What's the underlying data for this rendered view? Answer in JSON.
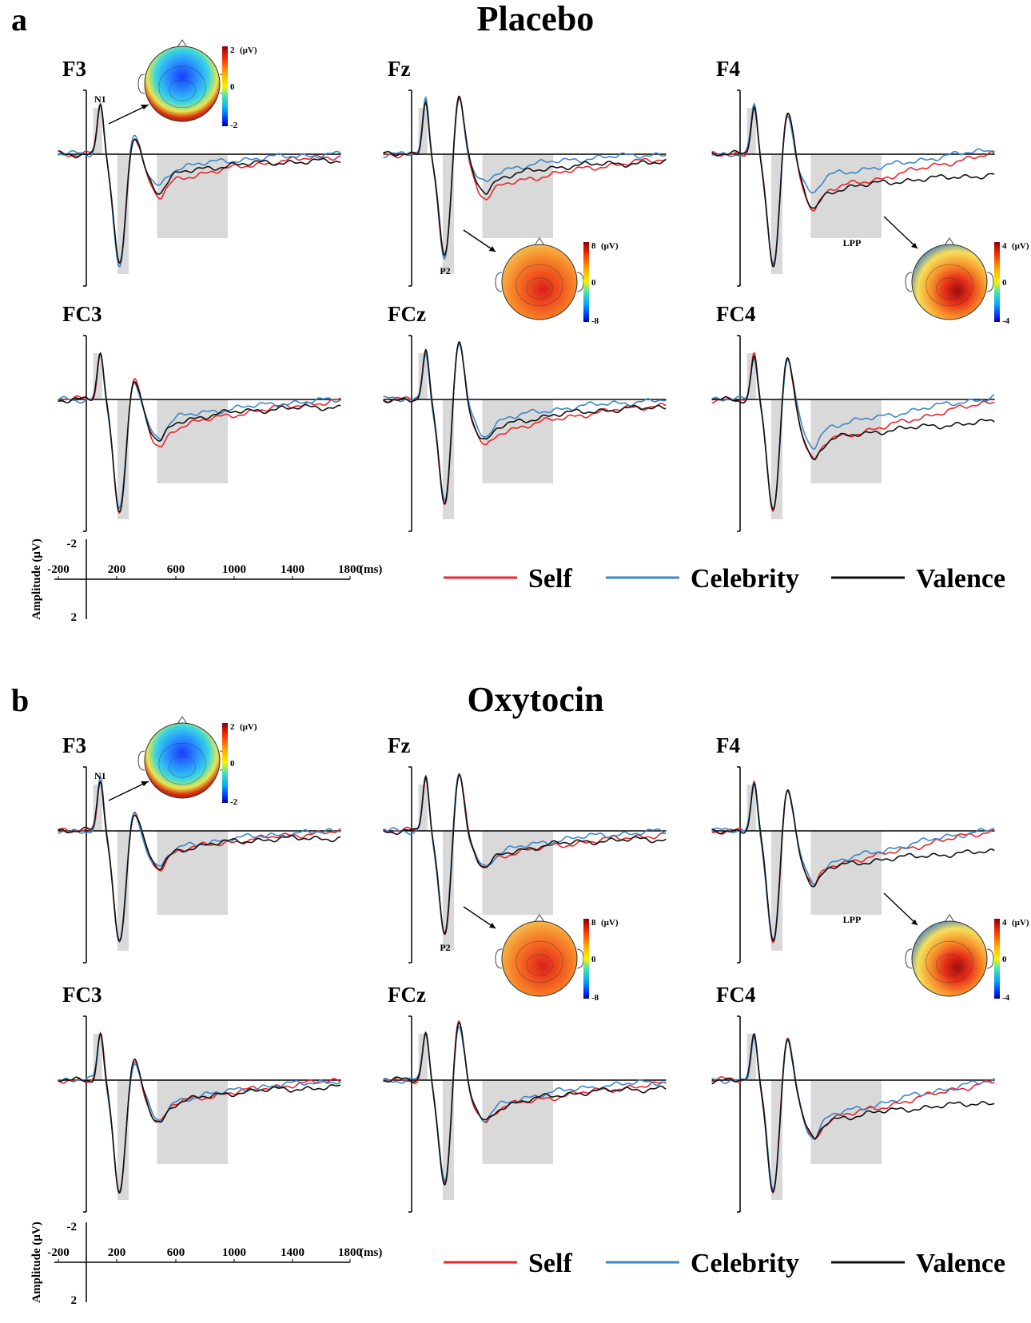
{
  "chart_data": {
    "type": "line",
    "series_names": [
      "Self",
      "Celebrity",
      "Valence"
    ],
    "colors": {
      "Self": "#e8262b",
      "Celebrity": "#3d86c6",
      "Valence": "#111111",
      "window": "#d9d9d9"
    },
    "x_axis": {
      "ticks": [
        "-200",
        "200",
        "600",
        "1000",
        "1400",
        "1800"
      ],
      "unit": "(ms)",
      "range_ms": [
        -200,
        1800
      ]
    },
    "y_axis": {
      "label": "Amplitude (μV)",
      "ticks": [
        "-2",
        "2"
      ]
    },
    "windows": {
      "N1": [
        60,
        150
      ],
      "P2": [
        220,
        300
      ],
      "LPP": [
        500,
        1000
      ]
    },
    "panels": [
      {
        "letter": "a",
        "title": "Placebo",
        "electrodes": [
          {
            "name": "F3",
            "component": "N1",
            "topo": {
              "max": "2",
              "mid": "0",
              "min": "-2",
              "unit": "(μV)"
            }
          },
          {
            "name": "Fz",
            "component": "P2",
            "topo": {
              "max": "8",
              "mid": "0",
              "min": "-8",
              "unit": "(μV)"
            }
          },
          {
            "name": "F4",
            "component": "LPP",
            "topo": {
              "max": "4",
              "mid": "0",
              "min": "-4",
              "unit": "(μV)"
            }
          },
          {
            "name": "FC3"
          },
          {
            "name": "FCz"
          },
          {
            "name": "FC4"
          }
        ]
      },
      {
        "letter": "b",
        "title": "Oxytocin",
        "electrodes": [
          {
            "name": "F3",
            "component": "N1",
            "topo": {
              "max": "2",
              "mid": "0",
              "min": "-2",
              "unit": "(μV)"
            }
          },
          {
            "name": "Fz",
            "component": "P2",
            "topo": {
              "max": "8",
              "mid": "0",
              "min": "-8",
              "unit": "(μV)"
            }
          },
          {
            "name": "F4",
            "component": "LPP",
            "topo": {
              "max": "4",
              "mid": "0",
              "min": "-4",
              "unit": "(μV)"
            }
          },
          {
            "name": "FC3"
          },
          {
            "name": "FCz"
          },
          {
            "name": "FC4"
          }
        ]
      }
    ]
  }
}
